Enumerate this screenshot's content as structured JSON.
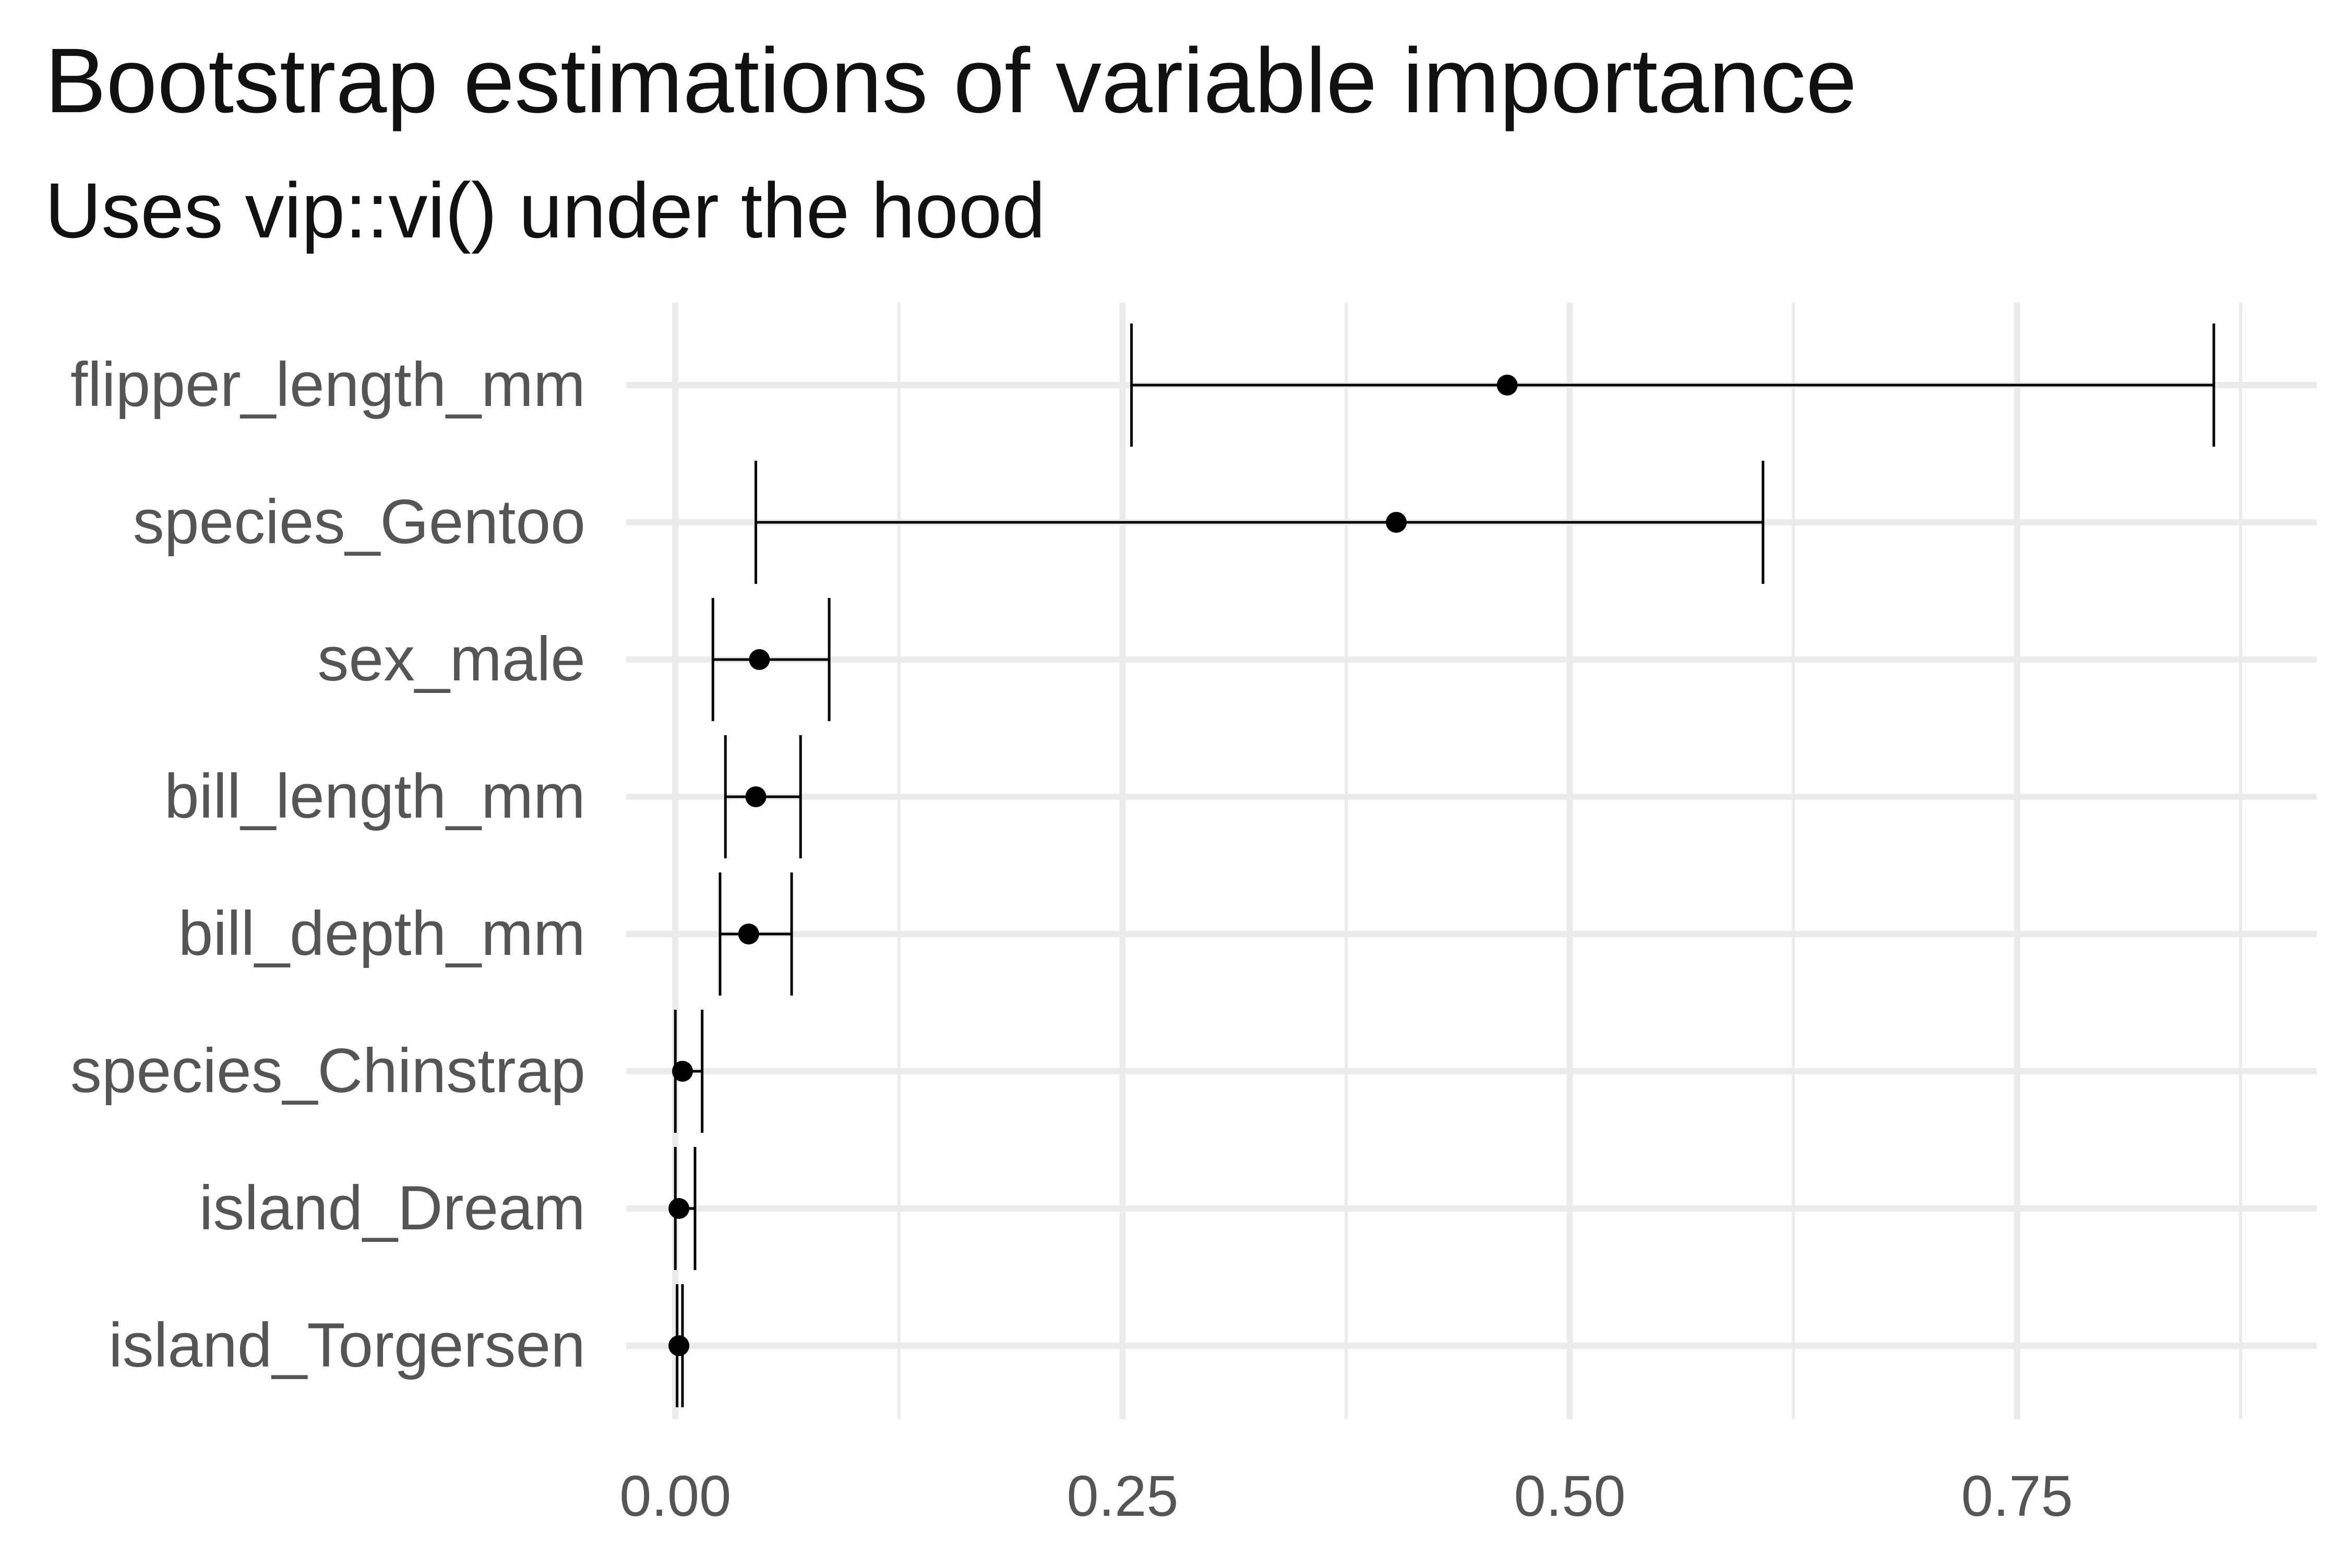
{
  "chart_data": {
    "type": "errorbar",
    "title": "Bootstrap estimations of variable importance",
    "subtitle": "Uses vip::vi() under the hood",
    "xlabel": "",
    "ylabel": "",
    "xlim": [
      -0.0275,
      0.9175
    ],
    "x_ticks": [
      0,
      0.25,
      0.5,
      0.75
    ],
    "x_tick_labels": [
      "0.00",
      "0.25",
      "0.50",
      "0.75"
    ],
    "grid": true,
    "colors": {
      "mark": "#000000",
      "grid_major": "#ebebeb",
      "grid_minor": "#ebebeb",
      "background": "#ffffff"
    },
    "points": [
      {
        "label": "flipper_length_mm",
        "estimate": 0.465,
        "lower": 0.255,
        "upper": 0.86
      },
      {
        "label": "species_Gentoo",
        "estimate": 0.403,
        "lower": 0.045,
        "upper": 0.608
      },
      {
        "label": "sex_male",
        "estimate": 0.047,
        "lower": 0.021,
        "upper": 0.086
      },
      {
        "label": "bill_length_mm",
        "estimate": 0.045,
        "lower": 0.028,
        "upper": 0.07
      },
      {
        "label": "bill_depth_mm",
        "estimate": 0.041,
        "lower": 0.025,
        "upper": 0.065
      },
      {
        "label": "species_Chinstrap",
        "estimate": 0.004,
        "lower": 0.0,
        "upper": 0.015
      },
      {
        "label": "island_Dream",
        "estimate": 0.002,
        "lower": 0.0,
        "upper": 0.011
      },
      {
        "label": "island_Torgersen",
        "estimate": 0.002,
        "lower": 0.001,
        "upper": 0.004
      }
    ]
  }
}
